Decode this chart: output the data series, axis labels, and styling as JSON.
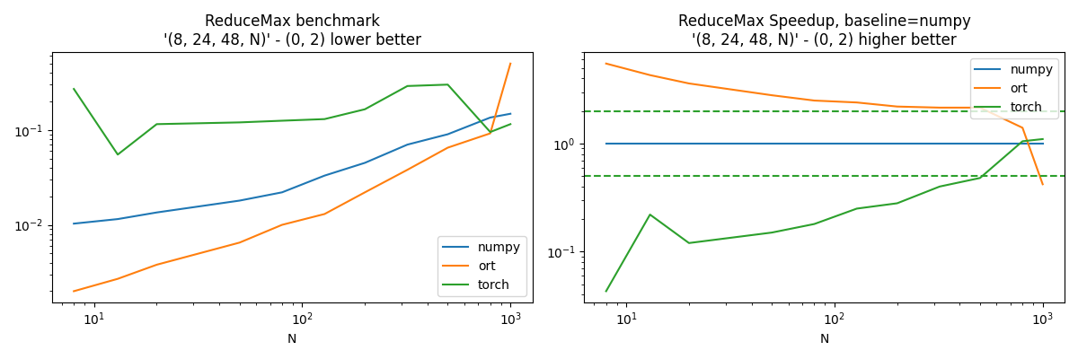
{
  "title1": "ReduceMax benchmark\n'(8, 24, 48, N)' - (0, 2) lower better",
  "title2": "ReduceMax Speedup, baseline=numpy\n'(8, 24, 48, N)' - (0, 2) higher better",
  "xlabel": "N",
  "N_values": [
    8,
    13,
    20,
    50,
    80,
    128,
    200,
    320,
    500,
    800,
    1000
  ],
  "numpy_times": [
    0.0103,
    0.0115,
    0.0135,
    0.018,
    0.022,
    0.033,
    0.045,
    0.07,
    0.09,
    0.135,
    0.148
  ],
  "ort_times": [
    0.002,
    0.0027,
    0.0038,
    0.0065,
    0.01,
    0.013,
    0.022,
    0.038,
    0.065,
    0.092,
    0.5
  ],
  "torch_times": [
    0.27,
    0.055,
    0.115,
    0.12,
    0.125,
    0.13,
    0.165,
    0.29,
    0.3,
    0.095,
    0.115
  ],
  "numpy_speedup": [
    1.0,
    1.0,
    1.0,
    1.0,
    1.0,
    1.0,
    1.0,
    1.0,
    1.0,
    1.0,
    1.0
  ],
  "ort_speedup": [
    5.5,
    4.3,
    3.6,
    2.8,
    2.5,
    2.4,
    2.2,
    2.15,
    2.15,
    1.4,
    0.42
  ],
  "torch_speedup": [
    0.043,
    0.22,
    0.12,
    0.15,
    0.18,
    0.25,
    0.28,
    0.4,
    0.48,
    1.05,
    1.1
  ],
  "dashed_upper": 2.0,
  "dashed_lower": 0.5,
  "color_numpy": "#1f77b4",
  "color_ort": "#ff7f0e",
  "color_torch": "#2ca02c",
  "linewidth": 1.5
}
